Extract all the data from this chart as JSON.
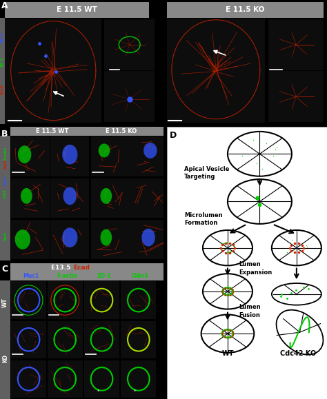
{
  "fig_width": 4.74,
  "fig_height": 5.79,
  "dpi": 100,
  "bg_color": "#000000",
  "gray_header": "#888888",
  "dark_gray_strip": "#606060",
  "micro_bg": "#0d0d0d",
  "white": "#ffffff",
  "red": "#cc2200",
  "green": "#00cc00",
  "blue": "#3355ff",
  "orange": "#cc7700",
  "diagram_bg": "#ffffff",
  "panel_A_WT": "E 11.5 WT",
  "panel_A_KO": "E 11.5 KO",
  "panel_B_WT": "E 11.5 WT",
  "panel_B_KO": "E 11.5 KO",
  "panel_C_title_plain": "E13.5 ",
  "panel_C_title_red": "Ecad",
  "panel_C_col_labels": [
    "Muc1",
    "F-actin",
    "ZO-1",
    "Cldn3"
  ],
  "panel_C_col_colors": [
    "#3355ff",
    "#00cc00",
    "#00cc00",
    "#00cc00"
  ],
  "panel_B_row_labels": [
    "F-actin",
    "Crb3",
    "Par6"
  ],
  "stage_labels": [
    "Apical Vesicle\nTargeting",
    "Microlumen\nFormation",
    "Lumen\nExpansion",
    "Lumen\nFusion"
  ],
  "bottom_labels": [
    "WT",
    "Cdc42 KO"
  ],
  "panel_labels": [
    "A",
    "B",
    "C",
    "D"
  ]
}
